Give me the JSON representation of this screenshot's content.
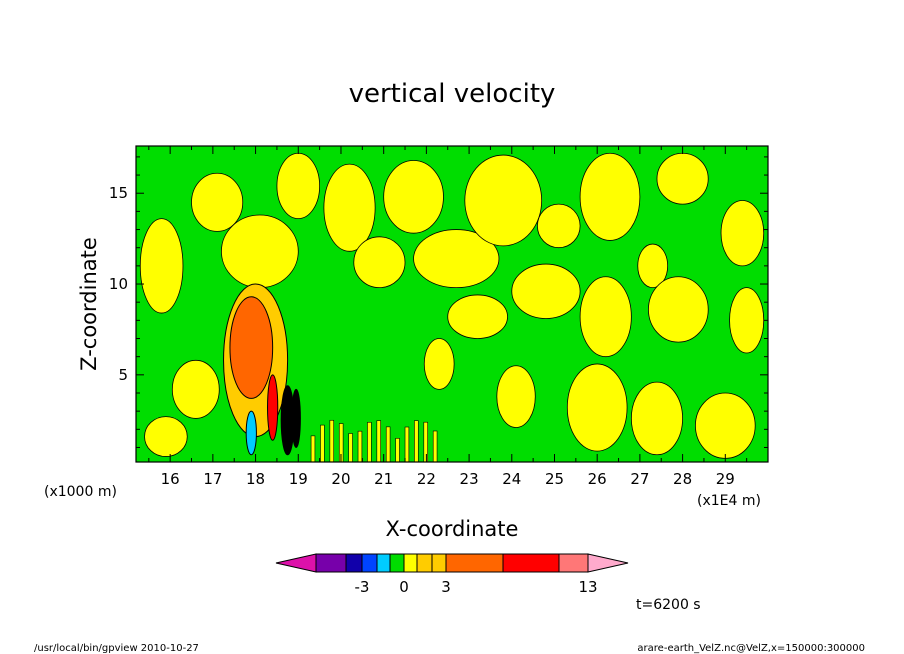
{
  "chart_data": {
    "type": "heatmap",
    "title": "vertical velocity",
    "xlabel": "X-coordinate",
    "ylabel": "Z-coordinate",
    "x_unit_label": "(x1E4 m)",
    "y_unit_label": "(x1000 m)",
    "xlim": [
      15.2,
      30.0
    ],
    "ylim": [
      0.2,
      17.6
    ],
    "x_ticks": [
      "16",
      "17",
      "18",
      "19",
      "20",
      "21",
      "22",
      "23",
      "24",
      "25",
      "26",
      "27",
      "28",
      "29"
    ],
    "y_ticks": [
      "5",
      "10",
      "15"
    ],
    "field_levels": {
      "background": "#00dd00",
      "positive_weak": "#ffff00",
      "updraft_outer": "#ffcc00",
      "updraft_core": "#ff6600",
      "updraft_max": "#ff0000",
      "downdraft": "#00ccff",
      "strong_cell": "#000000"
    },
    "features": [
      {
        "kind": "updraft",
        "x": 17.9,
        "z": 6.5,
        "rx": 0.5,
        "rz": 2.8,
        "level": "updraft_core"
      },
      {
        "kind": "updraft",
        "x": 18.0,
        "z": 5.8,
        "rx": 0.75,
        "rz": 4.2,
        "level": "updraft_outer"
      },
      {
        "kind": "cell",
        "x": 18.4,
        "z": 3.2,
        "rx": 0.12,
        "rz": 1.8,
        "level": "updraft_max"
      },
      {
        "kind": "cell",
        "x": 18.75,
        "z": 2.5,
        "rx": 0.15,
        "rz": 1.9,
        "level": "strong_cell"
      },
      {
        "kind": "cell",
        "x": 18.95,
        "z": 2.6,
        "rx": 0.1,
        "rz": 1.6,
        "level": "strong_cell"
      },
      {
        "kind": "downdraft",
        "x": 17.9,
        "z": 1.8,
        "rx": 0.12,
        "rz": 1.2,
        "level": "downdraft"
      }
    ],
    "positive_blobs": [
      {
        "x": 15.8,
        "z": 11.0,
        "rx": 0.5,
        "rz": 2.6
      },
      {
        "x": 16.6,
        "z": 4.2,
        "rx": 0.55,
        "rz": 1.6
      },
      {
        "x": 15.9,
        "z": 1.6,
        "rx": 0.5,
        "rz": 1.1
      },
      {
        "x": 17.1,
        "z": 14.5,
        "rx": 0.6,
        "rz": 1.6
      },
      {
        "x": 18.1,
        "z": 11.8,
        "rx": 0.9,
        "rz": 2.0
      },
      {
        "x": 19.0,
        "z": 15.4,
        "rx": 0.5,
        "rz": 1.8
      },
      {
        "x": 20.2,
        "z": 14.2,
        "rx": 0.6,
        "rz": 2.4
      },
      {
        "x": 20.9,
        "z": 11.2,
        "rx": 0.6,
        "rz": 1.4
      },
      {
        "x": 21.7,
        "z": 14.8,
        "rx": 0.7,
        "rz": 2.0
      },
      {
        "x": 22.7,
        "z": 11.4,
        "rx": 1.0,
        "rz": 1.6
      },
      {
        "x": 23.8,
        "z": 14.6,
        "rx": 0.9,
        "rz": 2.5
      },
      {
        "x": 24.8,
        "z": 9.6,
        "rx": 0.8,
        "rz": 1.5
      },
      {
        "x": 25.1,
        "z": 13.2,
        "rx": 0.5,
        "rz": 1.2
      },
      {
        "x": 26.3,
        "z": 14.8,
        "rx": 0.7,
        "rz": 2.4
      },
      {
        "x": 26.2,
        "z": 8.2,
        "rx": 0.6,
        "rz": 2.2
      },
      {
        "x": 27.3,
        "z": 11.0,
        "rx": 0.35,
        "rz": 1.2
      },
      {
        "x": 28.0,
        "z": 15.8,
        "rx": 0.6,
        "rz": 1.4
      },
      {
        "x": 27.9,
        "z": 8.6,
        "rx": 0.7,
        "rz": 1.8
      },
      {
        "x": 29.4,
        "z": 12.8,
        "rx": 0.5,
        "rz": 1.8
      },
      {
        "x": 29.5,
        "z": 8.0,
        "rx": 0.4,
        "rz": 1.8
      },
      {
        "x": 26.0,
        "z": 3.2,
        "rx": 0.7,
        "rz": 2.4
      },
      {
        "x": 27.4,
        "z": 2.6,
        "rx": 0.6,
        "rz": 2.0
      },
      {
        "x": 29.0,
        "z": 2.2,
        "rx": 0.7,
        "rz": 1.8
      },
      {
        "x": 24.1,
        "z": 3.8,
        "rx": 0.45,
        "rz": 1.7
      },
      {
        "x": 22.3,
        "z": 5.6,
        "rx": 0.35,
        "rz": 1.4
      },
      {
        "x": 23.2,
        "z": 8.2,
        "rx": 0.7,
        "rz": 1.2
      }
    ]
  },
  "colorbar": {
    "colors": [
      "#dd11aa",
      "#7700aa",
      "#1100aa",
      "#0044ff",
      "#00ccff",
      "#00dd00",
      "#ffff00",
      "#ffcc00",
      "#ffcc00",
      "#ff6600",
      "#ff0000",
      "#ff7777",
      "#ffaacc"
    ],
    "labels": [
      "-3",
      "0",
      "3",
      "13"
    ]
  },
  "time_label": "t=6200 s",
  "footer": {
    "left": "/usr/local/bin/gpview  2010-10-27",
    "right": "arare-earth_VelZ.nc@VelZ,x=150000:300000"
  }
}
